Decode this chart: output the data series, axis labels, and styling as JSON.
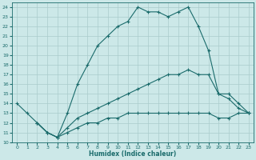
{
  "xlabel": "Humidex (Indice chaleur)",
  "background_color": "#cce8e8",
  "grid_color": "#aacccc",
  "line_color": "#1a6b6b",
  "xlim": [
    -0.5,
    23.5
  ],
  "ylim": [
    10,
    24.5
  ],
  "xticks": [
    0,
    1,
    2,
    3,
    4,
    5,
    6,
    7,
    8,
    9,
    10,
    11,
    12,
    13,
    14,
    15,
    16,
    17,
    18,
    19,
    20,
    21,
    22,
    23
  ],
  "yticks": [
    10,
    11,
    12,
    13,
    14,
    15,
    16,
    17,
    18,
    19,
    20,
    21,
    22,
    23,
    24
  ],
  "line1_x": [
    0,
    1,
    2,
    3,
    4,
    5,
    6,
    7,
    8,
    9,
    10,
    11,
    12,
    13,
    14,
    15,
    16,
    17,
    18,
    19,
    20,
    21,
    22,
    23
  ],
  "line1_y": [
    14,
    13,
    12,
    11,
    10.5,
    13,
    16,
    18,
    20,
    21,
    22,
    22.5,
    24,
    23.5,
    23.5,
    23,
    23.5,
    24,
    22,
    19.5,
    15,
    14.5,
    13.5,
    13
  ],
  "line2_x": [
    2,
    3,
    4,
    5,
    6,
    7,
    8,
    9,
    10,
    11,
    12,
    13,
    14,
    15,
    16,
    17,
    18,
    19,
    20,
    21,
    22,
    23
  ],
  "line2_y": [
    12,
    11,
    10.5,
    11.5,
    12.5,
    13,
    13.5,
    14,
    14.5,
    15,
    15.5,
    16,
    16.5,
    17,
    17,
    17.5,
    17,
    17,
    15,
    15,
    14,
    13
  ],
  "line3_x": [
    2,
    3,
    4,
    5,
    6,
    7,
    8,
    9,
    10,
    11,
    12,
    13,
    14,
    15,
    16,
    17,
    18,
    19,
    20,
    21,
    22,
    23
  ],
  "line3_y": [
    12,
    11,
    10.5,
    11,
    11.5,
    12,
    12,
    12.5,
    12.5,
    13,
    13,
    13,
    13,
    13,
    13,
    13,
    13,
    13,
    12.5,
    12.5,
    13,
    13
  ]
}
